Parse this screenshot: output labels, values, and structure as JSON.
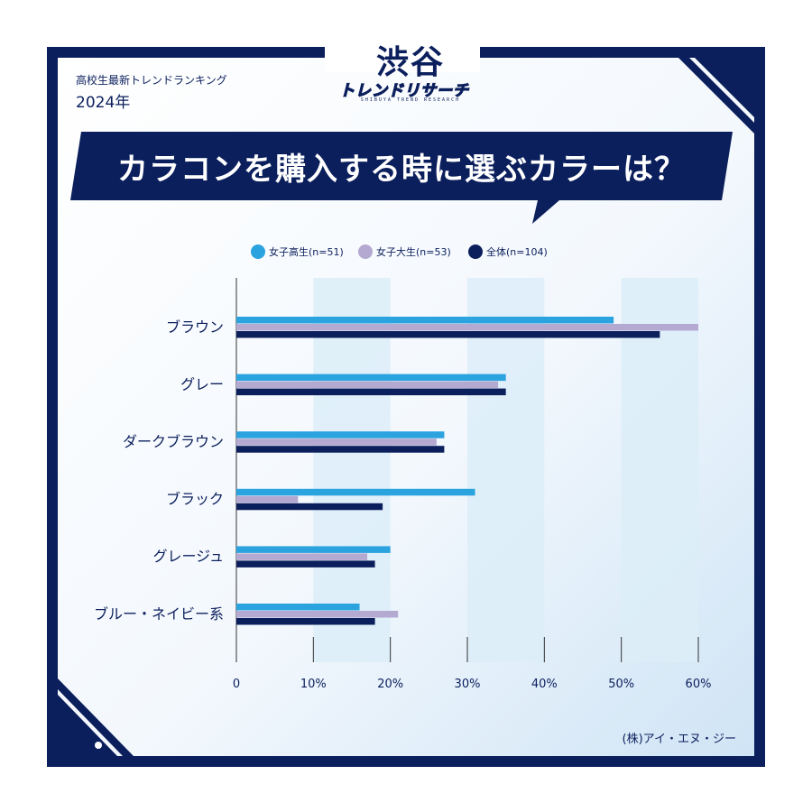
{
  "header": {
    "subtitle": "高校生最新トレンドランキング",
    "year": "2024年",
    "logo_main": "渋谷",
    "logo_sub": "トレンドリサーチ",
    "logo_tagline": "SHIBUYA TREND RESEARCH"
  },
  "question": "カラコンを購入する時に選ぶカラーは？",
  "source": "(株)アイ・エヌ・ジー",
  "colors": {
    "navy": "#0b1f5c",
    "series_1": "#2aa3df",
    "series_2": "#b4a9d1",
    "series_3": "#0b1f5c",
    "band": "#dcedf8"
  },
  "chart_data": {
    "type": "bar",
    "orientation": "horizontal",
    "categories": [
      "ブラウン",
      "グレー",
      "ダークブラウン",
      "ブラック",
      "グレージュ",
      "ブルー・ネイビー系"
    ],
    "series": [
      {
        "name": "女子高生(n=51)",
        "values": [
          49,
          35,
          27,
          31,
          20,
          16
        ]
      },
      {
        "name": "女子大生(n=53)",
        "values": [
          60,
          34,
          26,
          8,
          17,
          21
        ]
      },
      {
        "name": "全体(n=104)",
        "values": [
          55,
          35,
          27,
          19,
          18,
          18
        ]
      }
    ],
    "xlim": [
      0,
      60
    ],
    "x_ticks": [
      "0",
      "10%",
      "20%",
      "30%",
      "40%",
      "50%",
      "60%"
    ],
    "grid": true,
    "legend_position": "top"
  }
}
